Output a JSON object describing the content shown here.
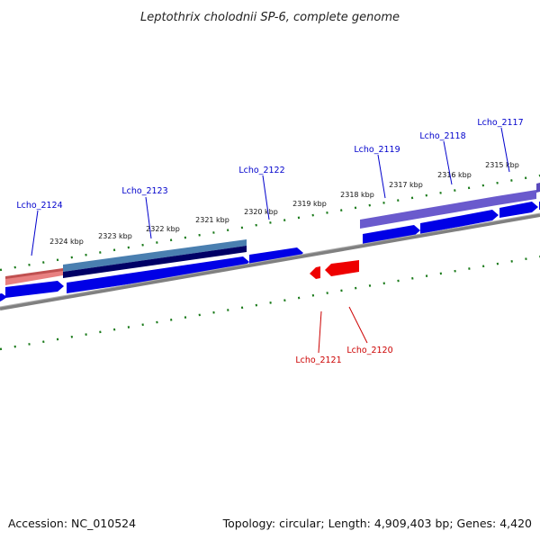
{
  "header": {
    "title": "Leptothrix cholodnii SP-6, complete genome"
  },
  "footer": {
    "accession": "Accession: NC_010524",
    "summary": "Topology: circular; Length: 4,909,403 bp; Genes: 4,420"
  },
  "scale_labels": [
    "2324 kbp",
    "2323 kbp",
    "2322 kbp",
    "2321 kbp",
    "2320 kbp",
    "2319 kbp",
    "2318 kbp",
    "2317 kbp",
    "2316 kbp",
    "2315 kbp"
  ],
  "top_gene_labels": [
    "Lcho_2124",
    "Lcho_2123",
    "Lcho_2122",
    "Lcho_2119",
    "Lcho_2118",
    "Lcho_2117"
  ],
  "bottom_gene_labels": [
    "Lcho_2121",
    "Lcho_2120"
  ],
  "colors": {
    "forward_gene": "#0000e6",
    "reverse_gene": "#ee0000",
    "forward_label": "#0000cc",
    "reverse_label": "#cc0000",
    "tick": "#1a7a1a",
    "backbone": "#808080",
    "feature_pink": "#e88080",
    "feature_steel": "#4a7fb0",
    "feature_navy": "#000066",
    "feature_purple": "#6a5acd"
  }
}
